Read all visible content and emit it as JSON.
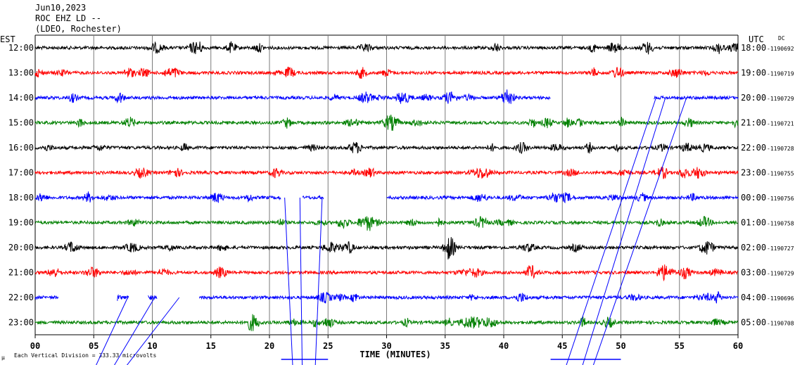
{
  "header": {
    "date": "Jun10,2023",
    "station": "ROC EHZ LD --",
    "network": "(LDEO, Rochester)"
  },
  "chart_data": {
    "type": "line",
    "title": "",
    "left_axis_label": "EST",
    "right_axis_label": "UTC",
    "right_axis_note": "DC",
    "xlabel": "TIME (MINUTES)",
    "xlim": [
      0,
      60
    ],
    "x_ticks": [
      "00",
      "05",
      "10",
      "15",
      "20",
      "25",
      "30",
      "35",
      "40",
      "45",
      "50",
      "55",
      "60"
    ],
    "grid": "vertical",
    "scale_note": "Each Vertical Division = 333.33 microvolts",
    "corner_mark": "μ",
    "trace_colors": [
      "#000000",
      "#ff0000",
      "#0000ff",
      "#008000"
    ],
    "rows": [
      {
        "est": "12:00",
        "utc": "18:00",
        "dc": "-1190692",
        "color": "#000000"
      },
      {
        "est": "13:00",
        "utc": "19:00",
        "dc": "-1190719",
        "color": "#ff0000"
      },
      {
        "est": "14:00",
        "utc": "20:00",
        "dc": "-1190729",
        "color": "#0000ff",
        "gaps": [
          [
            44,
            52.8
          ]
        ]
      },
      {
        "est": "15:00",
        "utc": "21:00",
        "dc": "-1190721",
        "color": "#008000"
      },
      {
        "est": "16:00",
        "utc": "22:00",
        "dc": "-1190728",
        "color": "#000000"
      },
      {
        "est": "17:00",
        "utc": "23:00",
        "dc": "-1190755",
        "color": "#ff0000"
      },
      {
        "est": "18:00",
        "utc": "00:00",
        "dc": "-1190756",
        "color": "#0000ff",
        "gaps": [
          [
            21,
            22.8
          ],
          [
            24.6,
            30
          ]
        ]
      },
      {
        "est": "19:00",
        "utc": "01:00",
        "dc": "-1190758",
        "color": "#008000"
      },
      {
        "est": "20:00",
        "utc": "02:00",
        "dc": "-1190727",
        "color": "#000000"
      },
      {
        "est": "21:00",
        "utc": "03:00",
        "dc": "-1190729",
        "color": "#ff0000"
      },
      {
        "est": "22:00",
        "utc": "04:00",
        "dc": "-1190696",
        "color": "#0000ff",
        "gaps": [
          [
            2,
            7
          ],
          [
            8,
            9.6
          ],
          [
            10.4,
            12.4
          ],
          [
            12.4,
            14
          ]
        ]
      },
      {
        "est": "23:00",
        "utc": "05:00",
        "dc": "-1190708",
        "color": "#008000"
      }
    ]
  }
}
